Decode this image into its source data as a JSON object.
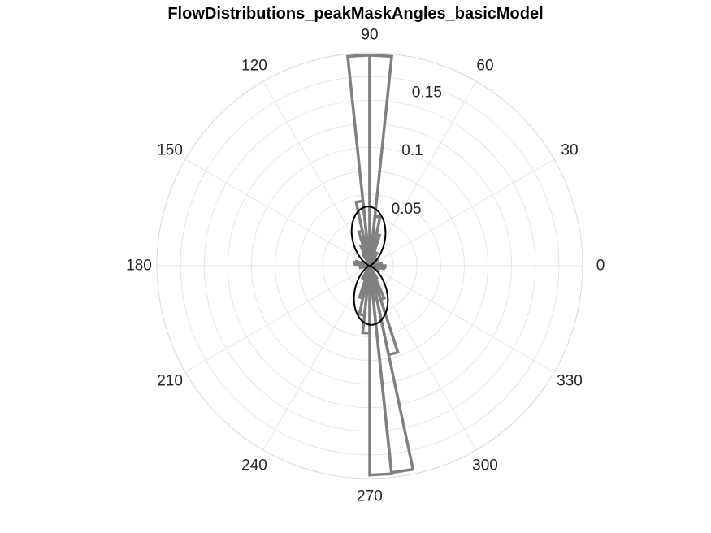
{
  "chart_data": {
    "type": "polar-histogram",
    "title": "FlowDistributions_peakMaskAngles_basicModel",
    "theta_unit": "degrees",
    "theta_ticks": [
      0,
      30,
      60,
      90,
      120,
      150,
      180,
      210,
      240,
      270,
      300,
      330
    ],
    "theta_tick_labels": [
      "0",
      "30",
      "60",
      "90",
      "120",
      "150",
      "180",
      "210",
      "240",
      "270",
      "300",
      "330"
    ],
    "r_ticks": [
      0.05,
      0.1,
      0.15
    ],
    "r_tick_labels": [
      "0.05",
      "0.1",
      "0.15"
    ],
    "rlim": [
      0,
      0.18
    ],
    "grid": true,
    "bin_width_deg": 6,
    "series": [
      {
        "type": "histogram",
        "color": "#808080",
        "bins": [
          {
            "start": 348,
            "end": 354,
            "value": 0.012
          },
          {
            "start": 354,
            "end": 360,
            "value": 0.013
          },
          {
            "start": 6,
            "end": 12,
            "value": 0.01
          },
          {
            "start": 36,
            "end": 42,
            "value": 0.008
          },
          {
            "start": 60,
            "end": 66,
            "value": 0.012
          },
          {
            "start": 72,
            "end": 78,
            "value": 0.027
          },
          {
            "start": 78,
            "end": 84,
            "value": 0.042
          },
          {
            "start": 84,
            "end": 90,
            "value": 0.178
          },
          {
            "start": 90,
            "end": 96,
            "value": 0.178
          },
          {
            "start": 96,
            "end": 102,
            "value": 0.055
          },
          {
            "start": 102,
            "end": 108,
            "value": 0.03
          },
          {
            "start": 108,
            "end": 114,
            "value": 0.018
          },
          {
            "start": 114,
            "end": 120,
            "value": 0.01
          },
          {
            "start": 150,
            "end": 156,
            "value": 0.007
          },
          {
            "start": 162,
            "end": 168,
            "value": 0.012
          },
          {
            "start": 168,
            "end": 174,
            "value": 0.013
          },
          {
            "start": 186,
            "end": 192,
            "value": 0.008
          },
          {
            "start": 240,
            "end": 246,
            "value": 0.012
          },
          {
            "start": 252,
            "end": 258,
            "value": 0.028
          },
          {
            "start": 258,
            "end": 264,
            "value": 0.042
          },
          {
            "start": 264,
            "end": 270,
            "value": 0.057
          },
          {
            "start": 270,
            "end": 276,
            "value": 0.177
          },
          {
            "start": 276,
            "end": 282,
            "value": 0.176
          },
          {
            "start": 282,
            "end": 288,
            "value": 0.077
          },
          {
            "start": 288,
            "end": 294,
            "value": 0.03
          },
          {
            "start": 294,
            "end": 300,
            "value": 0.012
          },
          {
            "start": 330,
            "end": 336,
            "value": 0.008
          }
        ]
      },
      {
        "type": "line",
        "color": "#000000",
        "formula": "r = a * |sin(theta - phi)|^k",
        "a": 0.05,
        "phi": 2,
        "k": 4
      }
    ]
  }
}
